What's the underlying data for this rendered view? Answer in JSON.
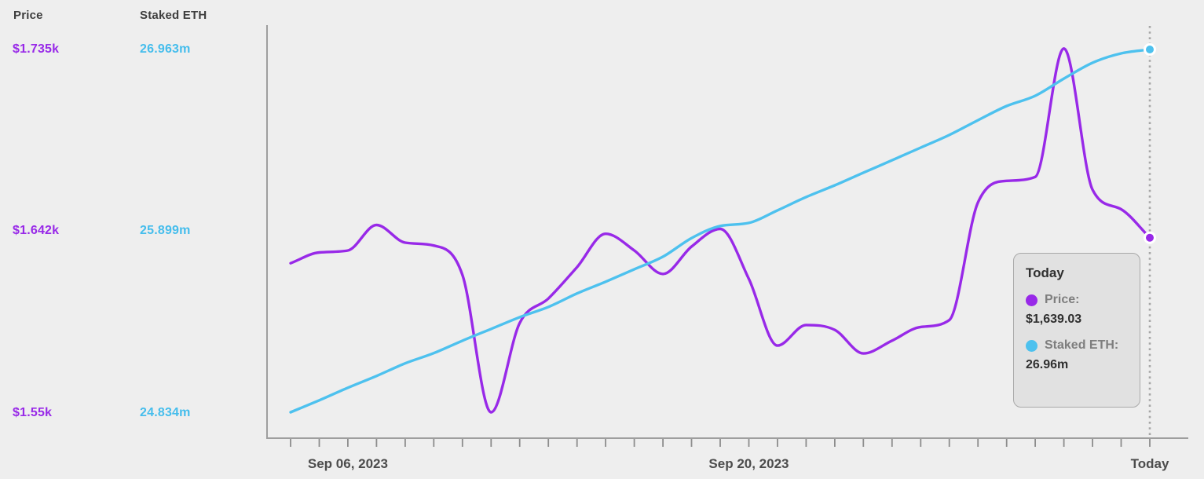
{
  "colors": {
    "price": "#9829e8",
    "staked": "#4dc1ee",
    "background": "#eeeeee",
    "axis": "#9e9e9e",
    "tick": "#8c8c8c",
    "today_line": "#a6a6a6",
    "dot_border": "#ffffff",
    "tooltip_bg": "#e1e1e1",
    "tooltip_border": "#a9a9a9"
  },
  "legend": {
    "price_header": "Price",
    "staked_header": "Staked ETH",
    "price_values": [
      "$1.735k",
      "$1.642k",
      "$1.55k"
    ],
    "staked_values": [
      "26.963m",
      "25.899m",
      "24.834m"
    ]
  },
  "tooltip": {
    "title": "Today",
    "rows": [
      {
        "label": "Price:",
        "value": "$1,639.03",
        "color": "#9829e8"
      },
      {
        "label": "Staked ETH:",
        "value": "26.96m",
        "color": "#4dc1ee"
      }
    ]
  },
  "chart_data": {
    "type": "line",
    "grid": false,
    "legend_position": "left",
    "x_ticks": [
      {
        "index": 2,
        "label": "Sep 06, 2023"
      },
      {
        "index": 16,
        "label": "Sep 20, 2023"
      },
      {
        "index": 30,
        "label": "Today"
      }
    ],
    "today_marker": {
      "index": 30,
      "style": "dotted-vertical-line"
    },
    "price_axis": {
      "title": "Price",
      "tick_labels": [
        "$1.735k",
        "$1.642k",
        "$1.55k"
      ],
      "tick_values": [
        1735,
        1642,
        1550
      ],
      "range": [
        1550,
        1735
      ]
    },
    "staked_axis": {
      "title": "Staked ETH",
      "tick_labels": [
        "26.963m",
        "25.899m",
        "24.834m"
      ],
      "tick_values": [
        26.963,
        25.899,
        24.834
      ],
      "range": [
        24.834,
        26.963
      ]
    },
    "series": [
      {
        "name": "Price",
        "axis": "price",
        "color": "#9829e8",
        "values": [
          1626,
          1631.5,
          1632.5,
          1645.5,
          1636.5,
          1635,
          1620,
          1550,
          1595.5,
          1608,
          1624,
          1641,
          1632.5,
          1620.5,
          1634.5,
          1643.5,
          1618,
          1584,
          1594.5,
          1592,
          1580,
          1586.5,
          1593.5,
          1597,
          1657,
          1668,
          1670,
          1735.5,
          1663.5,
          1653.5,
          1639.03
        ]
      },
      {
        "name": "Staked ETH",
        "axis": "staked",
        "color": "#4dc1ee",
        "values": [
          24.834,
          24.904,
          24.978,
          25.047,
          25.121,
          25.181,
          25.254,
          25.323,
          25.392,
          25.452,
          25.531,
          25.6,
          25.673,
          25.747,
          25.856,
          25.927,
          25.945,
          26.019,
          26.097,
          26.166,
          26.24,
          26.313,
          26.387,
          26.461,
          26.548,
          26.631,
          26.691,
          26.792,
          26.885,
          26.94,
          26.963
        ]
      }
    ]
  }
}
